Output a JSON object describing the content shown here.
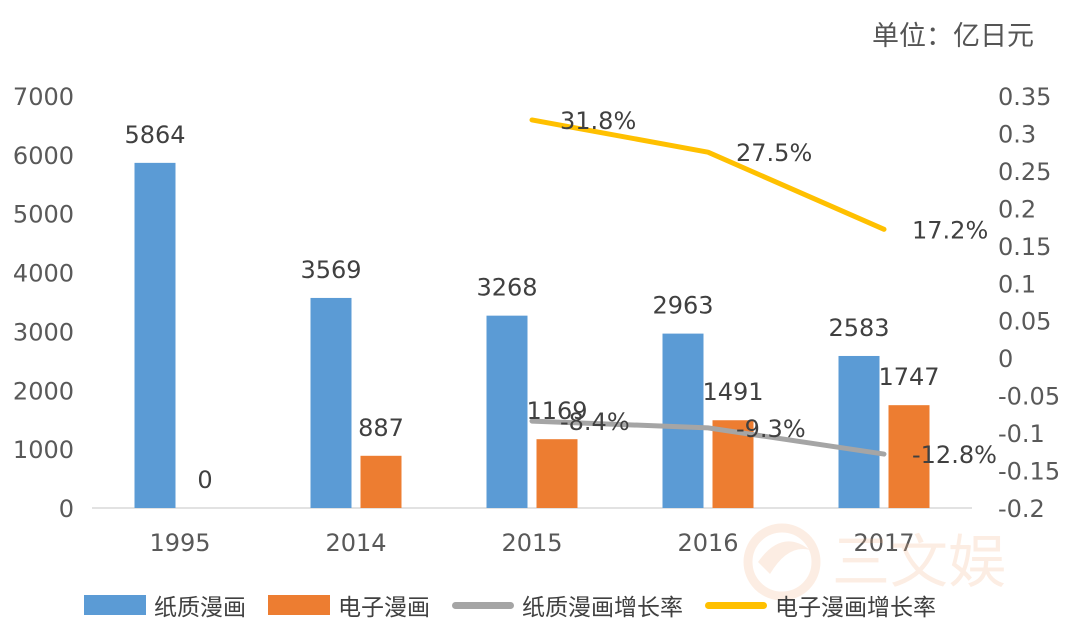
{
  "unit_label": "单位：亿日元",
  "watermark_text": "三文娱",
  "colors": {
    "paper": "#5B9BD5",
    "digital": "#ED7D31",
    "paper_growth": "#A5A5A5",
    "digital_growth": "#FFC000",
    "axis_text": "#595959",
    "label_text": "#404040",
    "axis_line": "#D9D9D9",
    "watermark": "#F4B183"
  },
  "chart_data": {
    "type": "bar",
    "categories": [
      "1995",
      "2014",
      "2015",
      "2016",
      "2017"
    ],
    "series": [
      {
        "name": "纸质漫画",
        "type": "bar",
        "axis": "left",
        "color_key": "paper",
        "values": [
          5864,
          3569,
          3268,
          2963,
          2583
        ],
        "labels": [
          "5864",
          "3569",
          "3268",
          "2963",
          "2583"
        ]
      },
      {
        "name": "电子漫画",
        "type": "bar",
        "axis": "left",
        "color_key": "digital",
        "values": [
          0,
          887,
          1169,
          1491,
          1747
        ],
        "labels": [
          "0",
          "887",
          "1169",
          "1491",
          "1747"
        ]
      },
      {
        "name": "纸质漫画增长率",
        "type": "line",
        "axis": "right",
        "color_key": "paper_growth",
        "values": [
          null,
          null,
          -0.084,
          -0.093,
          -0.128
        ],
        "labels": [
          null,
          null,
          "-8.4%",
          "-9.3%",
          "-12.8%"
        ]
      },
      {
        "name": "电子漫画增长率",
        "type": "line",
        "axis": "right",
        "color_key": "digital_growth",
        "values": [
          null,
          null,
          0.318,
          0.275,
          0.172
        ],
        "labels": [
          null,
          null,
          "31.8%",
          "27.5%",
          "17.2%"
        ]
      }
    ],
    "y_left": {
      "min": 0,
      "max": 7000,
      "ticks": [
        "0",
        "1000",
        "2000",
        "3000",
        "4000",
        "5000",
        "6000",
        "7000"
      ]
    },
    "y_right": {
      "min": -0.2,
      "max": 0.35,
      "ticks": [
        "-0.2",
        "-0.15",
        "-0.1",
        "-0.05",
        "0",
        "0.05",
        "0.1",
        "0.15",
        "0.2",
        "0.25",
        "0.3",
        "0.35"
      ]
    },
    "grid": false,
    "legend_position": "bottom"
  }
}
